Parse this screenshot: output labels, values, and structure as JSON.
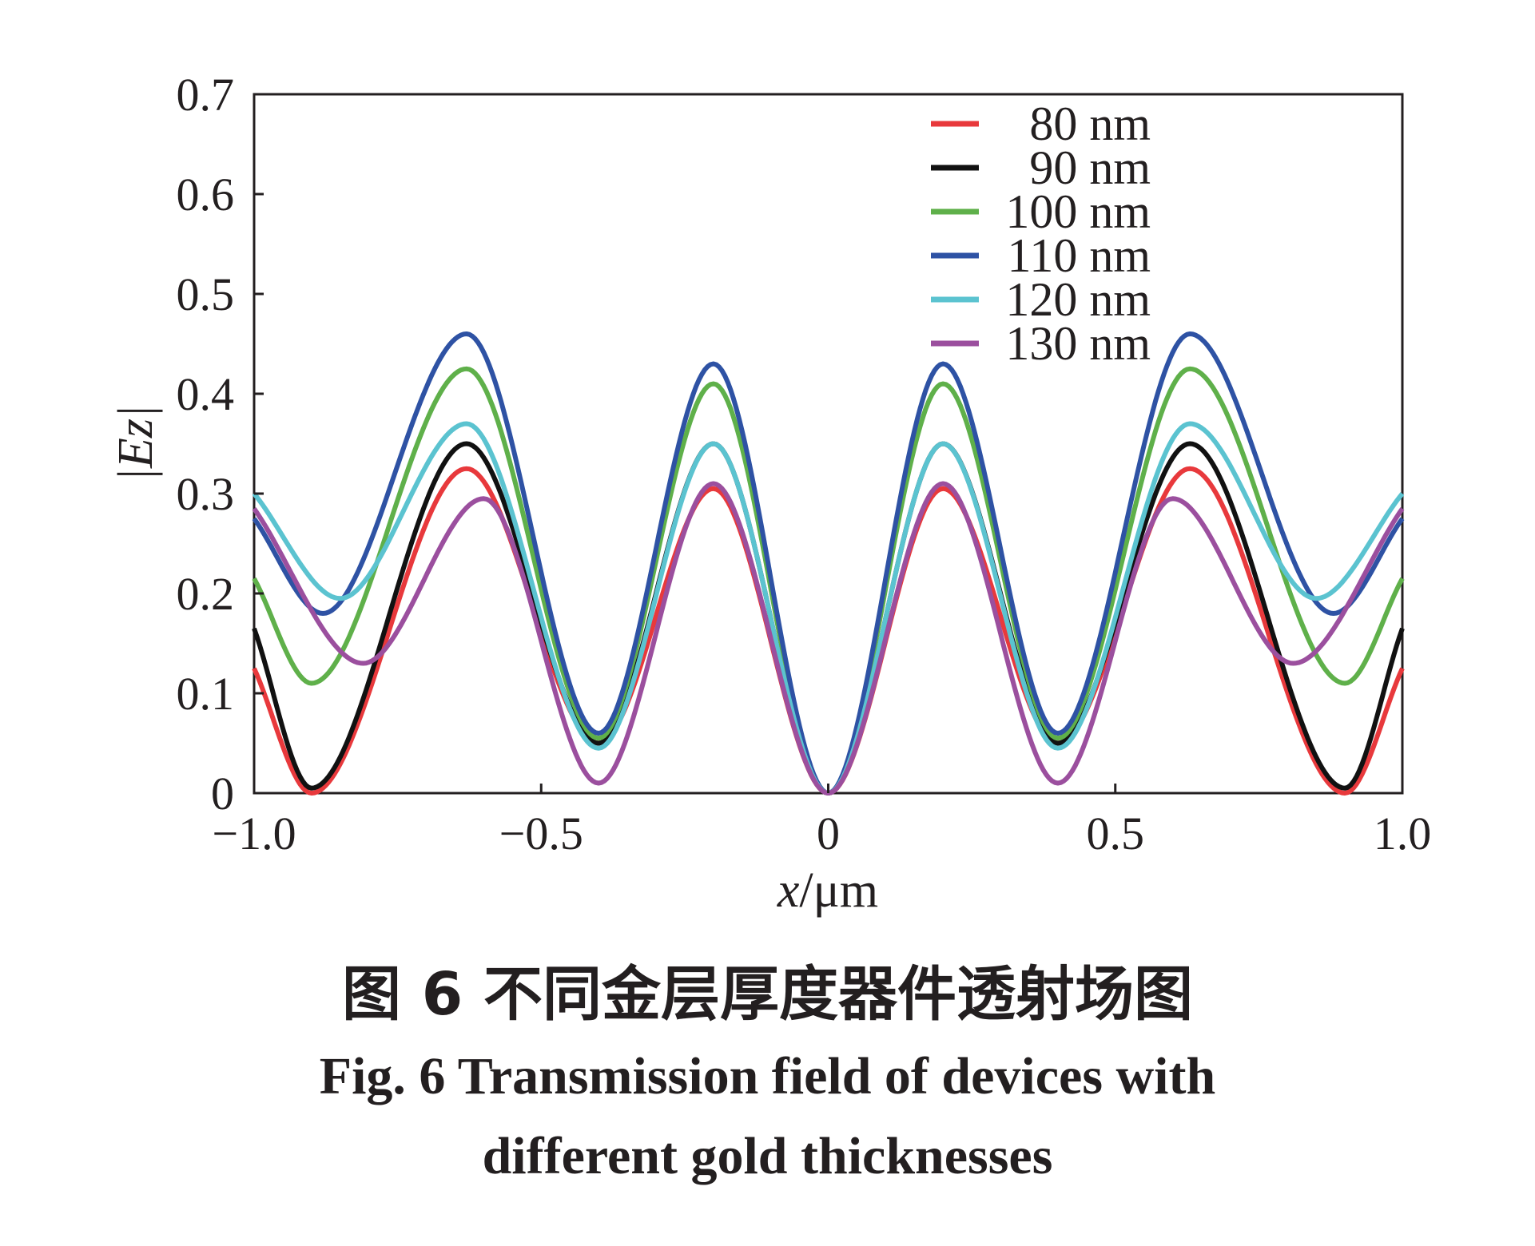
{
  "chart_data": {
    "type": "line",
    "xlabel_var": "x",
    "xlabel_unit": "/μm",
    "ylabel": "|Ez|",
    "xlim": [
      -1.0,
      1.0
    ],
    "ylim": [
      0,
      0.7
    ],
    "x_ticks": [
      -1.0,
      -0.5,
      0,
      0.5,
      1.0
    ],
    "x_tick_labels": [
      "−1.0",
      "−0.5",
      "0",
      "0.5",
      "1.0"
    ],
    "y_ticks": [
      0,
      0.1,
      0.2,
      0.3,
      0.4,
      0.5,
      0.6,
      0.7
    ],
    "y_tick_labels": [
      "0",
      "0.1",
      "0.2",
      "0.3",
      "0.4",
      "0.5",
      "0.6",
      "0.7"
    ],
    "grid": false,
    "legend_position": "top-right",
    "series": [
      {
        "name": "80 nm",
        "color": "#e8393c",
        "symmetric": true,
        "points": [
          [
            0,
            0
          ],
          [
            0.2,
            0.305
          ],
          [
            0.4,
            0.05
          ],
          [
            0.63,
            0.325
          ],
          [
            0.9,
            0
          ],
          [
            1.0,
            0.125
          ]
        ]
      },
      {
        "name": "90 nm",
        "color": "#111111",
        "symmetric": true,
        "points": [
          [
            0,
            0
          ],
          [
            0.2,
            0.35
          ],
          [
            0.4,
            0.05
          ],
          [
            0.63,
            0.35
          ],
          [
            0.9,
            0.005
          ],
          [
            1.0,
            0.165
          ]
        ]
      },
      {
        "name": "100 nm",
        "color": "#5fb04a",
        "symmetric": true,
        "points": [
          [
            0,
            0
          ],
          [
            0.2,
            0.41
          ],
          [
            0.4,
            0.055
          ],
          [
            0.63,
            0.425
          ],
          [
            0.9,
            0.11
          ],
          [
            1.0,
            0.215
          ]
        ]
      },
      {
        "name": "110 nm",
        "color": "#2e52a4",
        "symmetric": true,
        "points": [
          [
            0,
            0
          ],
          [
            0.2,
            0.43
          ],
          [
            0.4,
            0.06
          ],
          [
            0.63,
            0.46
          ],
          [
            0.88,
            0.18
          ],
          [
            1.0,
            0.275
          ]
        ]
      },
      {
        "name": "120 nm",
        "color": "#5bc3d0",
        "symmetric": true,
        "points": [
          [
            0,
            0
          ],
          [
            0.2,
            0.35
          ],
          [
            0.4,
            0.045
          ],
          [
            0.63,
            0.37
          ],
          [
            0.85,
            0.195
          ],
          [
            1.0,
            0.3
          ]
        ]
      },
      {
        "name": "130 nm",
        "color": "#9b4f9e",
        "symmetric": true,
        "points": [
          [
            0,
            0
          ],
          [
            0.2,
            0.31
          ],
          [
            0.4,
            0.01
          ],
          [
            0.6,
            0.295
          ],
          [
            0.81,
            0.13
          ],
          [
            1.0,
            0.285
          ]
        ]
      }
    ]
  },
  "caption": {
    "cn": "图 6   不同金层厚度器件透射场图",
    "en_line1": "Fig. 6    Transmission field of devices with",
    "en_line2": "different gold thicknesses"
  }
}
